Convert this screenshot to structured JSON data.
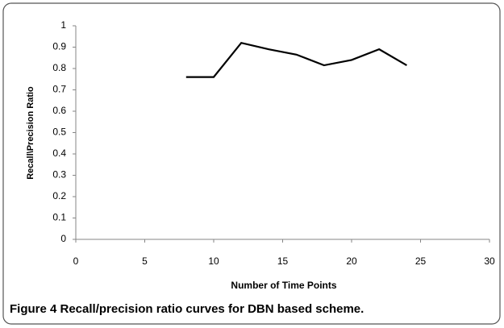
{
  "chart_data": {
    "type": "line",
    "caption": "Figure 4 Recall/precision ratio curves for DBN based scheme.",
    "xlabel": "Number of Time Points",
    "ylabel": "Recall\\Precision Ratio",
    "x": [
      8,
      10,
      12,
      14,
      16,
      18,
      20,
      22,
      24
    ],
    "series": [
      {
        "color": "#000000",
        "values": [
          0.76,
          0.76,
          0.92,
          0.89,
          0.865,
          0.815,
          0.84,
          0.89,
          0.815
        ]
      }
    ],
    "xlim": [
      0,
      30
    ],
    "xticks": [
      0,
      5,
      10,
      15,
      20,
      25,
      30
    ],
    "ylim": [
      0,
      1
    ],
    "yticks": [
      0,
      0.1,
      0.2,
      0.3,
      0.4,
      0.5,
      0.6,
      0.7,
      0.8,
      0.9,
      1
    ]
  }
}
